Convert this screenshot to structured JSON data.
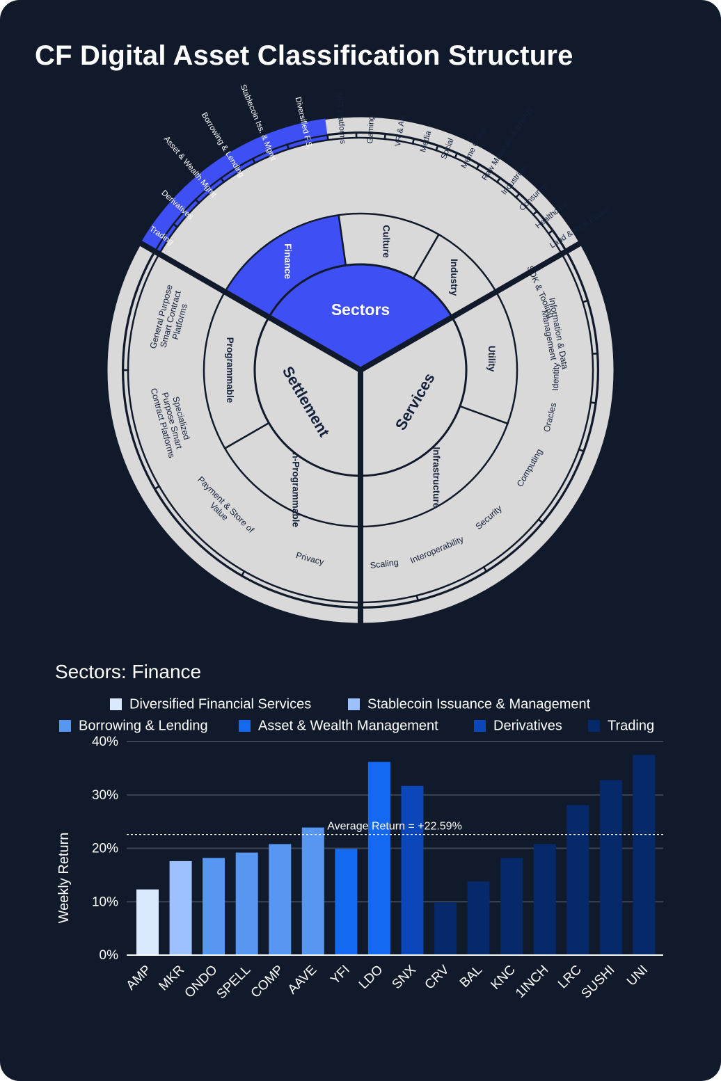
{
  "page": {
    "title": "CF Digital Asset Classification Structure"
  },
  "colors": {
    "background": "#111a2b",
    "segment": "#d9d9d9",
    "highlight": "#3d4ff5",
    "outline": "#111a2b",
    "grid": "#3d4454",
    "text_light": "#ffffff",
    "text_dark": "#14213a"
  },
  "wheel": {
    "sectors": [
      "Sectors",
      "Settlement",
      "Services"
    ],
    "highlighted_sector": "Sectors",
    "highlighted_group": "Finance",
    "groups": {
      "finance": {
        "label": "Finance",
        "subs": [
          "Trading",
          "Derivatives",
          "Asset & Wealth Mgmt",
          "Borrowing & Lending",
          "Stablecoin Iss. & Mgmt",
          "Diversified F.S."
        ]
      },
      "culture": {
        "label": "Culture",
        "subs": [
          "NFT Platforms",
          "Gaming",
          "VR & AR",
          "Media",
          "Social",
          "Meme Coins"
        ]
      },
      "industry": {
        "label": "Industry",
        "subs": [
          "Raw Materials & Energy",
          "Industrials",
          "Consumer",
          "Healthcare",
          "Land & Real Estate"
        ]
      },
      "utility": {
        "label": "Utility",
        "subs": [
          "SDK & Tooling",
          "Information & Data Management",
          "Identity",
          "Oracles"
        ]
      },
      "infrastructure": {
        "label": "Infrastructure",
        "subs": [
          "Computing",
          "Security",
          "Interoperability",
          "Scaling"
        ]
      },
      "nonprog": {
        "label": "Non-Programmable",
        "subs": [
          "Privacy",
          "Payment & Store of Value"
        ]
      },
      "prog": {
        "label": "Programmable",
        "subs": [
          "Specialized Purpose Smart Contract Platforms",
          "General Purpose Smart Contract Platforms"
        ]
      }
    }
  },
  "chart_data": {
    "type": "bar",
    "title": "Sectors: Finance",
    "xlabel": "",
    "ylabel": "Weekly Return",
    "ylim": [
      0,
      40
    ],
    "yticks": [
      "0%",
      "10%",
      "20%",
      "30%",
      "40%"
    ],
    "legend_placement": "top",
    "legend": [
      {
        "name": "Diversified Financial Services",
        "color": "#dbe9ff"
      },
      {
        "name": "Stablecoin Issuance & Management",
        "color": "#9dc1ff"
      },
      {
        "name": "Borrowing & Lending",
        "color": "#5797f2"
      },
      {
        "name": "Asset & Wealth Management",
        "color": "#1569f0"
      },
      {
        "name": "Derivatives",
        "color": "#0b47b8"
      },
      {
        "name": "Trading",
        "color": "#06296a"
      }
    ],
    "categories": [
      "AMP",
      "MKR",
      "ONDO",
      "SPELL",
      "COMP",
      "AAVE",
      "YFI",
      "LDO",
      "SNX",
      "CRV",
      "BAL",
      "KNC",
      "1INCH",
      "LRC",
      "SUSHI",
      "UNI"
    ],
    "values": [
      12.3,
      17.6,
      18.2,
      19.2,
      20.8,
      23.9,
      19.9,
      36.2,
      31.7,
      9.9,
      13.8,
      18.2,
      20.8,
      28.1,
      32.8,
      37.5
    ],
    "series_index": [
      "Diversified Financial Services",
      "Stablecoin Issuance & Management",
      "Borrowing & Lending",
      "Borrowing & Lending",
      "Borrowing & Lending",
      "Borrowing & Lending",
      "Asset & Wealth Management",
      "Asset & Wealth Management",
      "Derivatives",
      "Trading",
      "Trading",
      "Trading",
      "Trading",
      "Trading",
      "Trading",
      "Trading"
    ],
    "reference_line": {
      "value": 22.59,
      "label": "Average Return = +22.59%"
    }
  }
}
